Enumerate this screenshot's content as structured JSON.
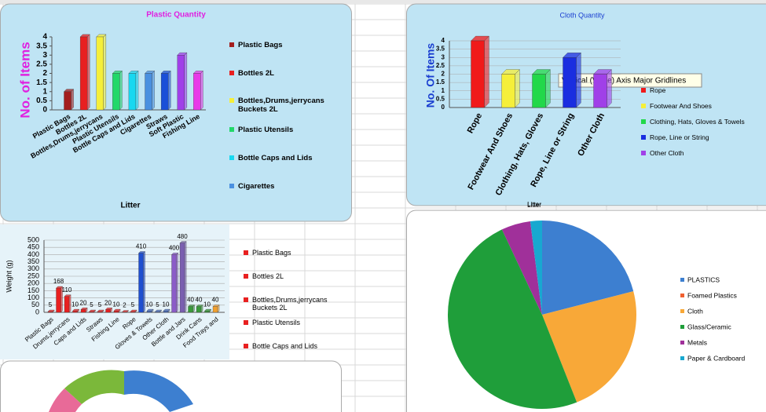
{
  "chart_data": [
    {
      "type": "bar",
      "title": "Plastic Quantity",
      "y_label": "No. of Items",
      "x_label": "Litter",
      "categories": [
        "Plastic Bags",
        "Bottles 2L",
        "Bottles,Drums,jerrycans",
        "Plastic Utensils",
        "Bottle Caps and Lids",
        "Cigarettes",
        "Straws",
        "Soft Plastic",
        "Fishing Line"
      ],
      "values": [
        1,
        4,
        4,
        2,
        2,
        2,
        2,
        3,
        2
      ],
      "colors": [
        "#a31e1e",
        "#e82020",
        "#f5ef3a",
        "#22d86a",
        "#18d8f0",
        "#4a90e0",
        "#1a4fd8",
        "#a040e8",
        "#e83ae8"
      ],
      "legend": [
        "Plastic  Bags",
        "Bottles 2L",
        "Bottles,Drums,jerrycans Buckets 2L",
        "Plastic Utensils",
        "Bottle Caps and Lids",
        "Cigarettes"
      ],
      "ylim": [
        0,
        4
      ],
      "yticks": [
        0,
        0.5,
        1,
        1.5,
        2,
        2.5,
        3,
        3.5,
        4
      ],
      "grid": false
    },
    {
      "type": "bar",
      "title": "Cloth Quantity",
      "y_label": "No. Of Items",
      "x_label": "Litter",
      "categories": [
        "Rope",
        "Footwear And Shoes",
        "Clothing, Hats, Gloves",
        "Rope, Line or String",
        "Other Cloth"
      ],
      "values": [
        4,
        2,
        2,
        3,
        2
      ],
      "colors": [
        "#f01a1a",
        "#f5ef3a",
        "#22d84a",
        "#1a2ee0",
        "#a040e8"
      ],
      "legend": [
        "Rope",
        "Footwear And Shoes",
        "Clothing, Hats, Gloves & Towels",
        "Rope, Line or String",
        "Other Cloth"
      ],
      "tooltip": "Vertical (Value) Axis Major Gridlines",
      "ylim": [
        0,
        4
      ],
      "yticks": [
        0,
        0.5,
        1,
        1.5,
        2,
        2.5,
        3,
        3.5,
        4
      ],
      "grid": true
    },
    {
      "type": "bar",
      "y_label": "Weight (g)",
      "categories": [
        "Plastic Bags",
        null,
        "Drums,jerrycans",
        null,
        "Caps and Lids",
        null,
        "Straws",
        null,
        "Fishing Line",
        null,
        "Rope",
        null,
        "Gloves & Towels",
        null,
        "Other Cloth",
        null,
        "Bottle and Jars",
        null,
        "Drink Cans",
        null,
        "Food Trays and"
      ],
      "values": [
        5,
        168,
        110,
        10,
        20,
        5,
        5,
        20,
        10,
        2,
        5,
        410,
        10,
        5,
        10,
        400,
        480,
        40,
        40,
        10,
        40
      ],
      "colors": [
        "#e82020",
        "#e82020",
        "#e82020",
        "#e82020",
        "#e82020",
        "#e82020",
        "#e82020",
        "#e82020",
        "#e82020",
        "#e82020",
        "#e82020",
        "#1f4fd0",
        "#4a6fc0",
        "#4a6fc0",
        "#4a6fc0",
        "#8b5cc8",
        "#7a5fb0",
        "#3a9a3a",
        "#3a9a3a",
        "#3a9a3a",
        "#f0a030"
      ],
      "legend": [
        "Plastic  Bags",
        "Bottles 2L",
        "Bottles,Drums,jerrycans Buckets 2L",
        "Plastic Utensils",
        "Bottle Caps and Lids"
      ],
      "ylim": [
        0,
        500
      ],
      "yticks": [
        0,
        50,
        100,
        150,
        200,
        250,
        300,
        350,
        400,
        450,
        500
      ],
      "grid": true
    },
    {
      "type": "pie",
      "title": "Litter",
      "categories": [
        "PLASTICS",
        "Foamed Plastics",
        "Cloth",
        "Glass/Ceramic",
        "Metals",
        "Paper & Cardboard"
      ],
      "values": [
        21,
        0,
        23,
        49,
        5,
        2
      ],
      "colors": [
        "#3d7fd0",
        "#f06030",
        "#f8a838",
        "#1f9e3a",
        "#a0309a",
        "#18a8d0"
      ]
    }
  ]
}
